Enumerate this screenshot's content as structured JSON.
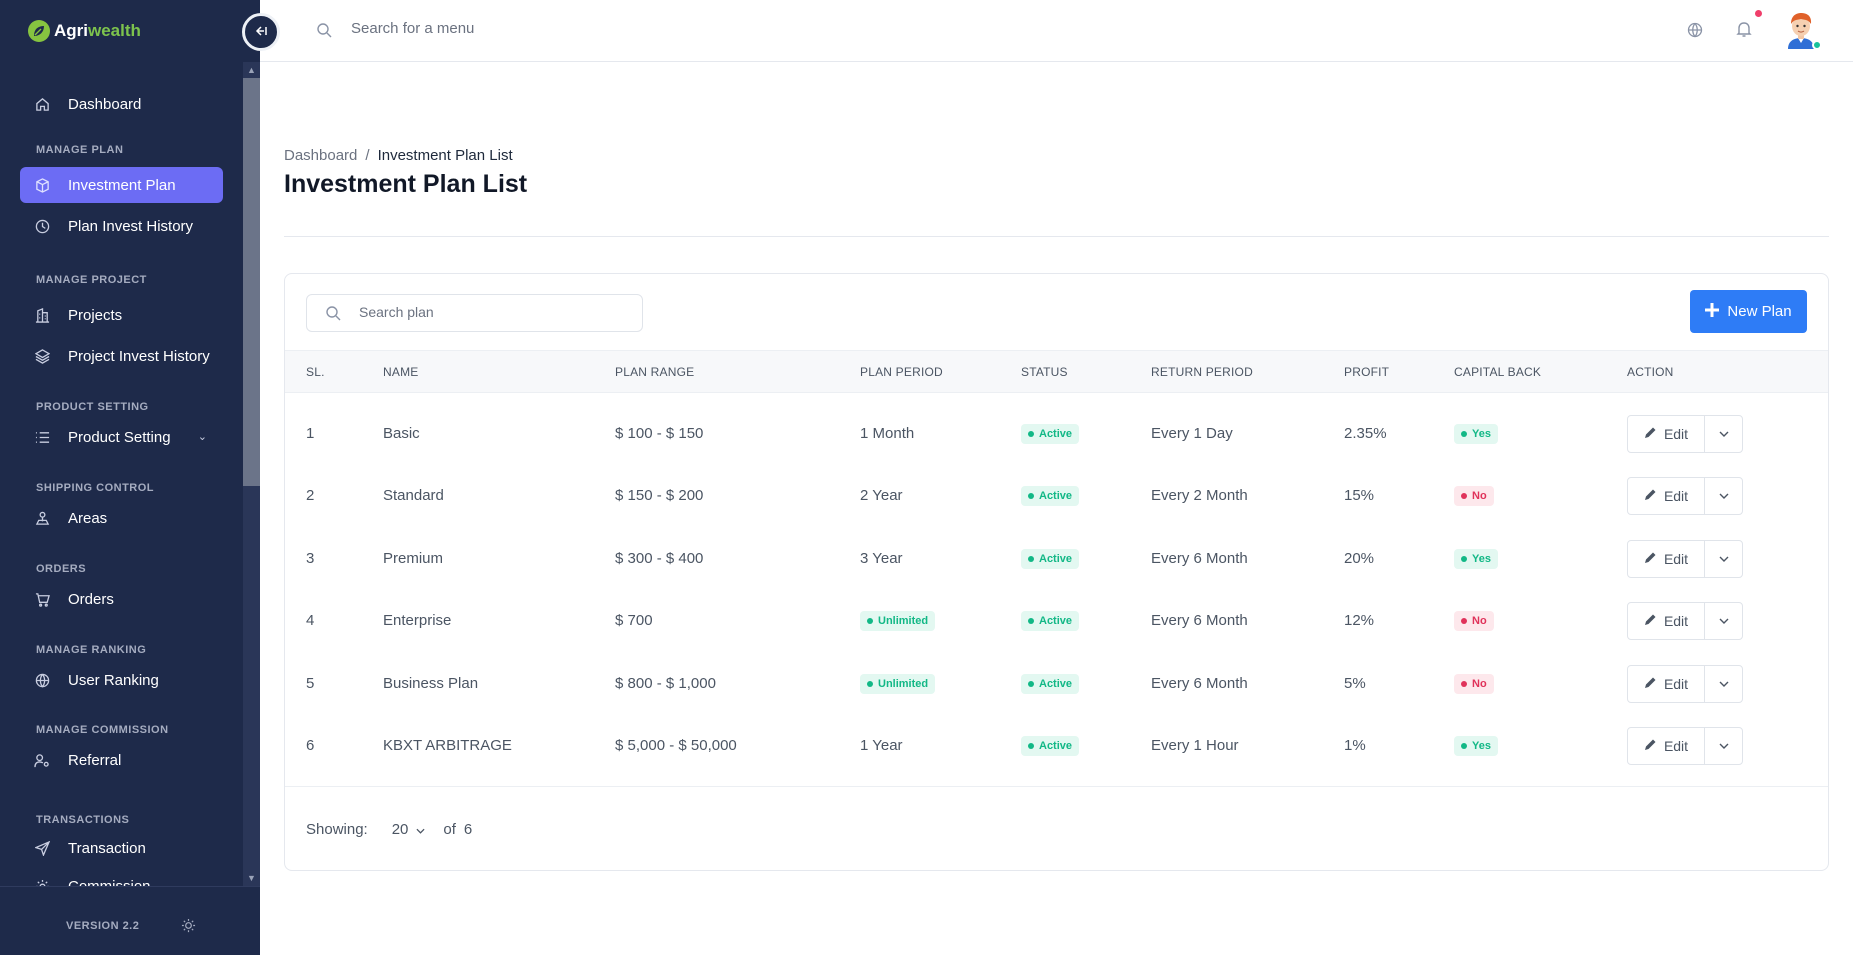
{
  "app": {
    "logo_part1": "Agri",
    "logo_part2": "wealth",
    "version": "VERSION 2.2"
  },
  "sidebar": {
    "sections": [
      {
        "label": "MANAGE PLAN"
      },
      {
        "label": "MANAGE PROJECT"
      },
      {
        "label": "PRODUCT SETTING"
      },
      {
        "label": "SHIPPING CONTROL"
      },
      {
        "label": "ORDERS"
      },
      {
        "label": "MANAGE RANKING"
      },
      {
        "label": "MANAGE COMMISSION"
      },
      {
        "label": "TRANSACTIONS"
      }
    ],
    "items": [
      {
        "label": "Dashboard",
        "icon": "home-icon"
      },
      {
        "label": "Investment Plan",
        "icon": "box-icon",
        "active": true
      },
      {
        "label": "Plan Invest History",
        "icon": "clock-icon"
      },
      {
        "label": "Projects",
        "icon": "building-icon"
      },
      {
        "label": "Project Invest History",
        "icon": "layers-icon"
      },
      {
        "label": "Product Setting",
        "icon": "list-icon"
      },
      {
        "label": "Areas",
        "icon": "map-pin-icon"
      },
      {
        "label": "Orders",
        "icon": "cart-icon"
      },
      {
        "label": "User Ranking",
        "icon": "globe-icon"
      },
      {
        "label": "Referral",
        "icon": "user-gear-icon"
      },
      {
        "label": "Transaction",
        "icon": "send-icon"
      },
      {
        "label": "Commission",
        "icon": "gear-icon"
      }
    ]
  },
  "topbar": {
    "search_placeholder": "Search for a menu"
  },
  "page": {
    "breadcrumb_root": "Dashboard",
    "breadcrumb_sep": "/",
    "breadcrumb_current": "Investment Plan List",
    "title": "Investment Plan List",
    "search_placeholder": "Search plan",
    "new_plan_label": "New Plan"
  },
  "table": {
    "headers": [
      "SL.",
      "NAME",
      "PLAN RANGE",
      "PLAN PERIOD",
      "STATUS",
      "RETURN PERIOD",
      "PROFIT",
      "CAPITAL BACK",
      "ACTION"
    ],
    "edit_label": "Edit",
    "rows": [
      {
        "sl": "1",
        "name": "Basic",
        "range": "$ 100 - $ 150",
        "period": "1 Month",
        "period_badge": false,
        "status": "Active",
        "return": "Every 1 Day",
        "profit": "2.35%",
        "capital": "Yes"
      },
      {
        "sl": "2",
        "name": "Standard",
        "range": "$ 150 - $ 200",
        "period": "2 Year",
        "period_badge": false,
        "status": "Active",
        "return": "Every 2 Month",
        "profit": "15%",
        "capital": "No"
      },
      {
        "sl": "3",
        "name": "Premium",
        "range": "$ 300 - $ 400",
        "period": "3 Year",
        "period_badge": false,
        "status": "Active",
        "return": "Every 6 Month",
        "profit": "20%",
        "capital": "Yes"
      },
      {
        "sl": "4",
        "name": "Enterprise",
        "range": "$ 700",
        "period": "Unlimited",
        "period_badge": true,
        "status": "Active",
        "return": "Every 6 Month",
        "profit": "12%",
        "capital": "No"
      },
      {
        "sl": "5",
        "name": "Business Plan",
        "range": "$ 800 - $ 1,000",
        "period": "Unlimited",
        "period_badge": true,
        "status": "Active",
        "return": "Every 6 Month",
        "profit": "5%",
        "capital": "No"
      },
      {
        "sl": "6",
        "name": "KBXT ARBITRAGE",
        "range": "$ 5,000 - $ 50,000",
        "period": "1 Year",
        "period_badge": false,
        "status": "Active",
        "return": "Every 1 Hour",
        "profit": "1%",
        "capital": "Yes"
      }
    ]
  },
  "pagination": {
    "showing_label": "Showing:",
    "per_page": "20",
    "of_label": "of",
    "total": "6"
  },
  "colors": {
    "sidebar_bg": "#1e2a4a",
    "active_item": "#6c6cf4",
    "primary_button": "#2e7cf6",
    "badge_green": "#12b886",
    "badge_red": "#e0325a",
    "logo_green": "#7dc34d"
  }
}
